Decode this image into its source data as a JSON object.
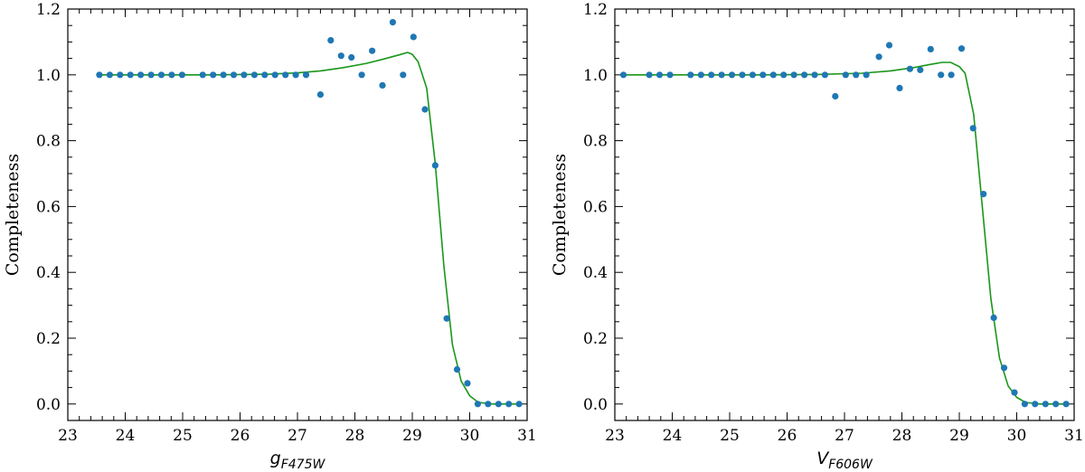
{
  "chart_data": [
    {
      "type": "scatter",
      "ylabel": "Completeness",
      "xlabel_main": "g",
      "xlabel_sub": "F475W",
      "xlim": [
        23,
        31
      ],
      "ylim": [
        -0.05,
        1.2
      ],
      "xticks": [
        23,
        24,
        25,
        26,
        27,
        28,
        29,
        30,
        31
      ],
      "yticks": [
        0.0,
        0.2,
        0.4,
        0.6,
        0.8,
        1.0,
        1.2
      ],
      "ytick_labels": [
        "0.0",
        "0.2",
        "0.4",
        "0.6",
        "0.8",
        "1.0",
        "1.2"
      ],
      "grid": false,
      "points": {
        "x": [
          23.55,
          23.73,
          23.91,
          24.09,
          24.27,
          24.45,
          24.63,
          24.81,
          24.99,
          25.35,
          25.53,
          25.71,
          25.89,
          26.07,
          26.25,
          26.43,
          26.61,
          26.79,
          26.97,
          27.15,
          27.4,
          27.58,
          27.76,
          27.94,
          28.12,
          28.3,
          28.48,
          28.66,
          28.84,
          29.02,
          29.22,
          29.4,
          29.6,
          29.78,
          29.96,
          30.14,
          30.32,
          30.5,
          30.68,
          30.86
        ],
        "y": [
          1.0,
          1.0,
          1.0,
          1.0,
          1.0,
          1.0,
          1.0,
          1.0,
          1.0,
          1.0,
          1.0,
          1.0,
          1.0,
          1.0,
          1.0,
          1.0,
          1.0,
          1.0,
          1.0,
          1.0,
          0.94,
          1.105,
          1.058,
          1.053,
          1.0,
          1.073,
          0.968,
          1.16,
          1.0,
          1.115,
          0.895,
          0.725,
          0.26,
          0.105,
          0.063,
          0.0,
          0.0,
          0.0,
          0.0,
          0.0
        ]
      },
      "fit": {
        "x": [
          23.55,
          24.5,
          25.5,
          26.5,
          27.0,
          27.4,
          27.8,
          28.2,
          28.5,
          28.8,
          28.92,
          29.0,
          29.1,
          29.25,
          29.4,
          29.55,
          29.7,
          29.85,
          30.0,
          30.15,
          30.4,
          30.7,
          30.86
        ],
        "y": [
          1.0,
          1.0,
          1.0,
          1.002,
          1.006,
          1.012,
          1.022,
          1.035,
          1.048,
          1.062,
          1.068,
          1.062,
          1.04,
          0.96,
          0.73,
          0.42,
          0.18,
          0.07,
          0.025,
          0.005,
          0.0,
          0.0,
          0.0
        ]
      }
    },
    {
      "type": "scatter",
      "ylabel": "Completeness",
      "xlabel_main": "V",
      "xlabel_sub": "F606W",
      "xlim": [
        23,
        31
      ],
      "ylim": [
        -0.05,
        1.2
      ],
      "xticks": [
        23,
        24,
        25,
        26,
        27,
        28,
        29,
        30,
        31
      ],
      "yticks": [
        0.0,
        0.2,
        0.4,
        0.6,
        0.8,
        1.0,
        1.2
      ],
      "ytick_labels": [
        "0.0",
        "0.2",
        "0.4",
        "0.6",
        "0.8",
        "1.0",
        "1.2"
      ],
      "grid": false,
      "points": {
        "x": [
          23.15,
          23.6,
          23.78,
          23.96,
          24.32,
          24.5,
          24.68,
          24.86,
          25.04,
          25.22,
          25.4,
          25.58,
          25.76,
          25.94,
          26.12,
          26.3,
          26.48,
          26.66,
          26.84,
          27.02,
          27.2,
          27.38,
          27.6,
          27.78,
          27.96,
          28.14,
          28.32,
          28.5,
          28.68,
          28.86,
          29.04,
          29.24,
          29.42,
          29.6,
          29.78,
          29.96,
          30.14,
          30.32,
          30.5,
          30.68,
          30.86
        ],
        "y": [
          1.0,
          1.0,
          1.0,
          1.0,
          1.0,
          1.0,
          1.0,
          1.0,
          1.0,
          1.0,
          1.0,
          1.0,
          1.0,
          1.0,
          1.0,
          1.0,
          1.0,
          1.0,
          0.935,
          1.0,
          1.0,
          1.0,
          1.055,
          1.09,
          0.96,
          1.018,
          1.015,
          1.078,
          1.0,
          1.0,
          1.08,
          0.838,
          0.638,
          0.262,
          0.11,
          0.035,
          0.0,
          0.0,
          0.0,
          0.0,
          0.0
        ]
      },
      "fit": {
        "x": [
          23.15,
          24.5,
          25.5,
          26.5,
          27.3,
          27.8,
          28.2,
          28.5,
          28.7,
          28.85,
          29.0,
          29.1,
          29.25,
          29.4,
          29.55,
          29.7,
          29.85,
          30.0,
          30.15,
          30.4,
          30.7,
          30.86
        ],
        "y": [
          1.0,
          1.0,
          1.0,
          1.001,
          1.005,
          1.012,
          1.022,
          1.032,
          1.038,
          1.038,
          1.025,
          1.005,
          0.88,
          0.6,
          0.32,
          0.14,
          0.055,
          0.02,
          0.005,
          0.0,
          0.0,
          0.0
        ]
      }
    }
  ],
  "colors": {
    "points": "#1f77b4",
    "fit_line": "#1a961a",
    "axes": "#000000"
  }
}
